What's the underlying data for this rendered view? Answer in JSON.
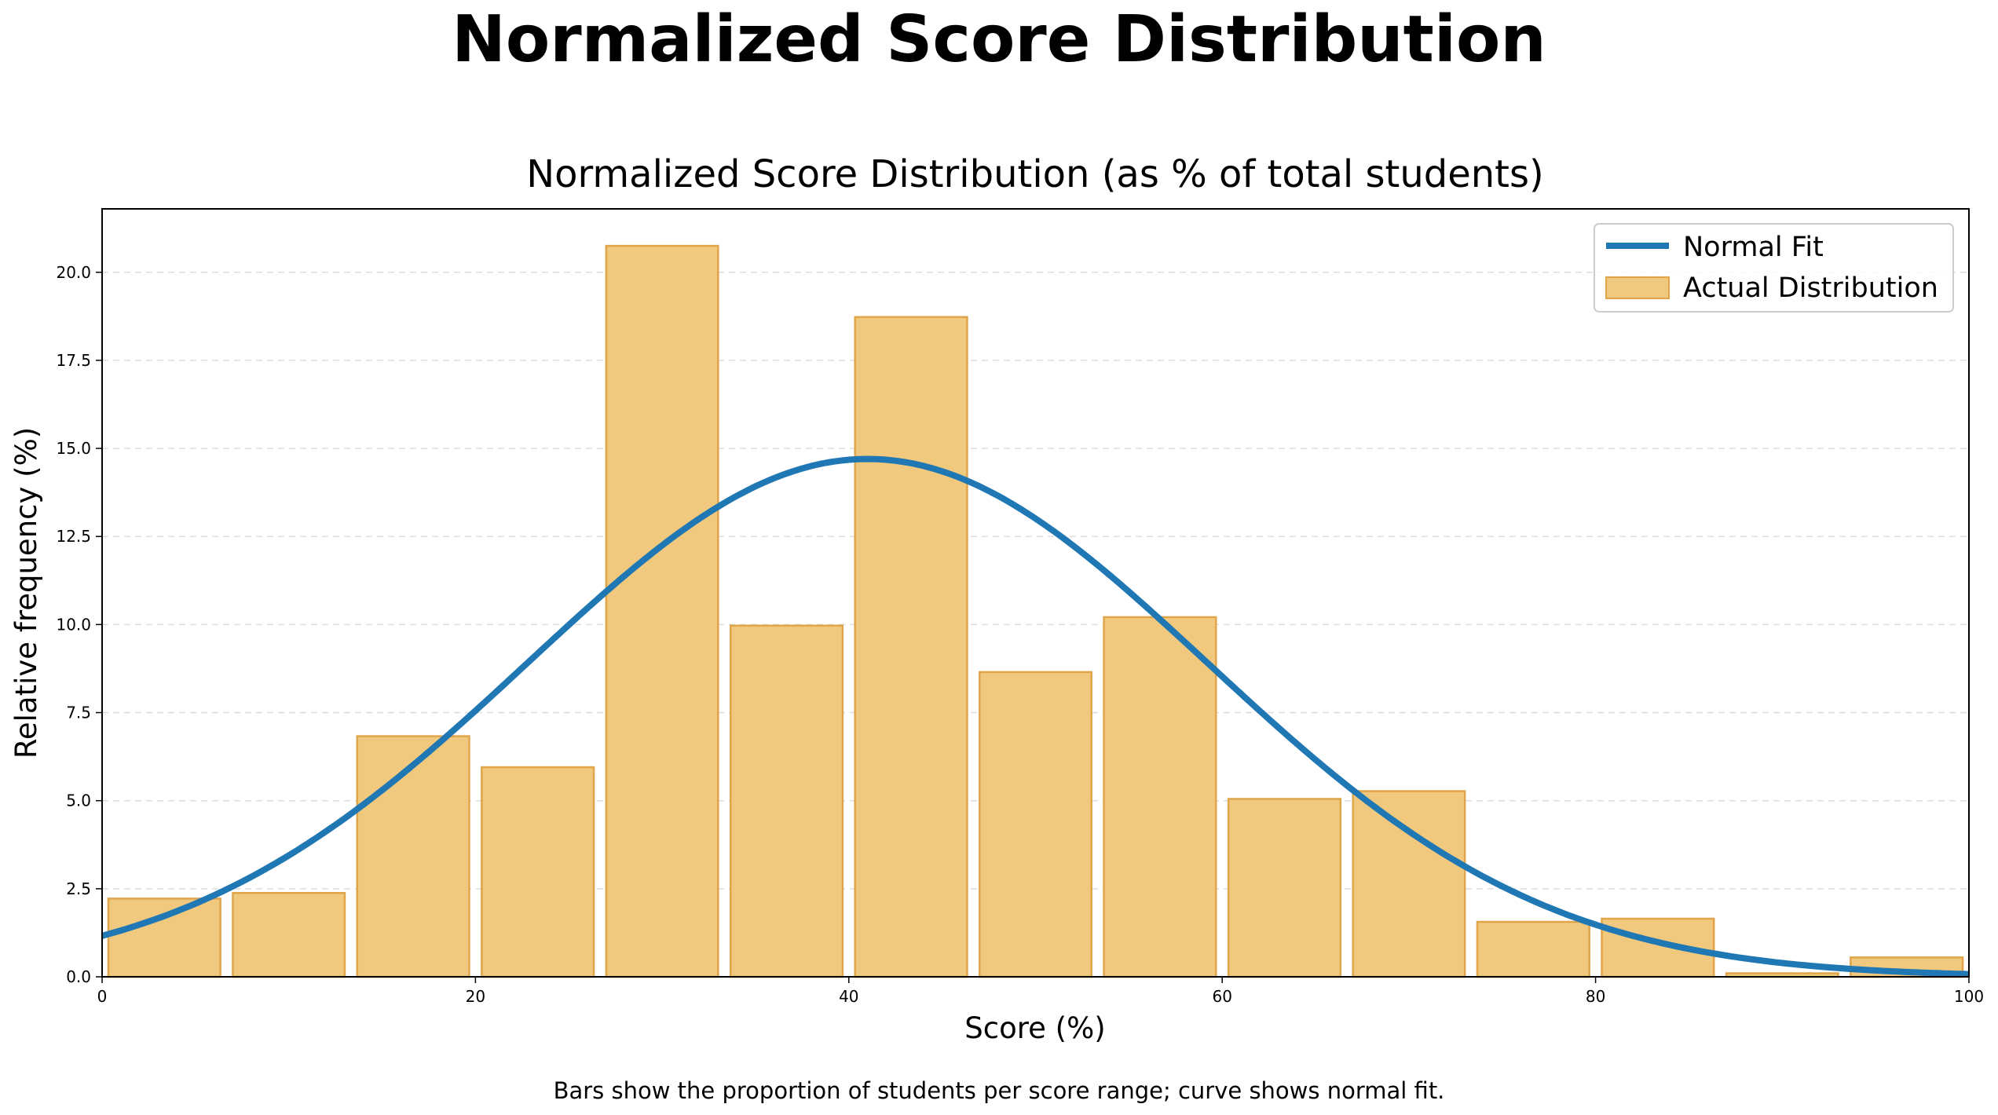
{
  "figure": {
    "suptitle": "Normalized Score Distribution",
    "caption": "Bars show the proportion of students per score range; curve shows normal fit."
  },
  "chart_data": {
    "type": "bar",
    "title": "Normalized Score Distribution (as % of total students)",
    "xlabel": "Score (%)",
    "ylabel": "Relative frequency (%)",
    "xlim": [
      0,
      100
    ],
    "ylim": [
      0,
      21.8
    ],
    "xticks": [
      0,
      20,
      40,
      60,
      80,
      100
    ],
    "xtick_labels": [
      "0",
      "20",
      "40",
      "60",
      "80",
      "100"
    ],
    "yticks": [
      0,
      2.5,
      5,
      7.5,
      10,
      12.5,
      15,
      17.5,
      20
    ],
    "ytick_labels": [
      "0.0",
      "2.5",
      "5.0",
      "7.5",
      "10.0",
      "12.5",
      "15.0",
      "17.5",
      "20.0"
    ],
    "grid": "y, dashed",
    "legend_position": "top-right",
    "bins": {
      "edges": [
        0,
        6.67,
        13.33,
        20,
        26.67,
        33.33,
        40,
        46.67,
        53.33,
        60,
        66.67,
        73.33,
        80,
        86.67,
        93.33,
        100
      ],
      "values": [
        2.22,
        2.38,
        6.83,
        5.95,
        20.75,
        9.97,
        18.73,
        8.65,
        10.21,
        5.05,
        5.27,
        1.56,
        1.65,
        0.1,
        0.55
      ]
    },
    "series": [
      {
        "name": "Normal Fit",
        "type": "line",
        "mean": 41,
        "std": 18.2,
        "peak": 14.7,
        "color": "#1f77b4"
      },
      {
        "name": "Actual Distribution",
        "type": "bar",
        "color": "#f0c97f",
        "edge_color": "#e0a54a"
      }
    ]
  }
}
